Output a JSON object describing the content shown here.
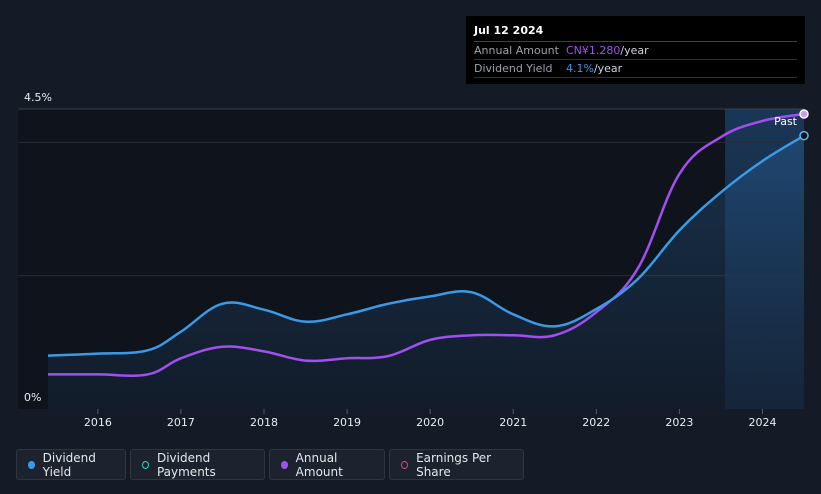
{
  "chart_data": {
    "type": "line",
    "y_axis": {
      "ticks": [
        "4.5%",
        "0%"
      ],
      "ylim": [
        0,
        4.5
      ]
    },
    "x_axis": {
      "ticks": [
        "2016",
        "2017",
        "2018",
        "2019",
        "2020",
        "2021",
        "2022",
        "2023",
        "2024"
      ],
      "xlim": [
        "2015.4",
        "2024.5"
      ]
    },
    "past_label": "Past",
    "series": [
      {
        "name": "Dividend Yield",
        "color": "#3b9ae8",
        "unit": "%",
        "x": [
          2015.4,
          2016.0,
          2016.6,
          2017.0,
          2017.5,
          2018.0,
          2018.5,
          2019.0,
          2019.5,
          2020.0,
          2020.5,
          2021.0,
          2021.5,
          2022.0,
          2022.5,
          2023.0,
          2023.5,
          2024.0,
          2024.5
        ],
        "values": [
          0.8,
          0.83,
          0.88,
          1.16,
          1.58,
          1.49,
          1.31,
          1.42,
          1.58,
          1.69,
          1.75,
          1.42,
          1.24,
          1.5,
          1.95,
          2.68,
          3.25,
          3.72,
          4.1
        ]
      },
      {
        "name": "Annual Amount",
        "color": "#a24ff0",
        "unit": "CN¥",
        "x": [
          2015.4,
          2016.0,
          2016.6,
          2017.0,
          2017.5,
          2018.0,
          2018.5,
          2019.0,
          2019.5,
          2020.0,
          2020.5,
          2021.0,
          2021.5,
          2022.0,
          2022.5,
          2023.0,
          2023.5,
          2024.0,
          2024.5
        ],
        "values": [
          0.15,
          0.15,
          0.15,
          0.22,
          0.27,
          0.25,
          0.21,
          0.22,
          0.23,
          0.3,
          0.32,
          0.32,
          0.32,
          0.42,
          0.61,
          1.02,
          1.18,
          1.25,
          1.28
        ],
        "max": 1.28
      }
    ],
    "shaded_from": 2023.55,
    "tooltip": {
      "date": "Jul 12 2024",
      "rows": [
        {
          "label": "Annual Amount",
          "value": "CN¥1.280",
          "unit": "/year"
        },
        {
          "label": "Dividend Yield",
          "value": "4.1%",
          "unit": "/year"
        }
      ]
    },
    "legend": [
      {
        "label": "Dividend Yield",
        "color": "#3b9ae8",
        "filled": true
      },
      {
        "label": "Dividend Payments",
        "color": "#39d2c0",
        "filled": false
      },
      {
        "label": "Annual Amount",
        "color": "#a24ff0",
        "filled": true
      },
      {
        "label": "Earnings Per Share",
        "color": "#d0457e",
        "filled": false
      }
    ]
  }
}
